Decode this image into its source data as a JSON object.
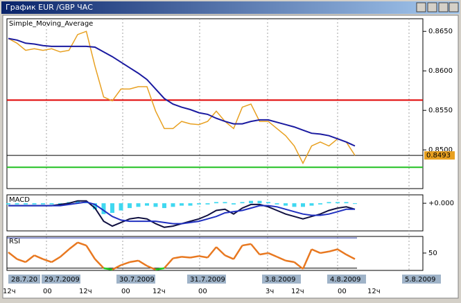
{
  "window": {
    "title": "График EUR /GBP  ЧАС"
  },
  "chart_data": [
    {
      "type": "line",
      "title": "Simple_Moving_Average",
      "x": [
        0,
        1,
        2,
        3,
        4,
        5,
        6,
        7,
        8,
        9,
        10,
        11,
        12,
        13,
        14,
        15,
        16,
        17,
        18,
        19,
        20,
        21,
        22,
        23,
        24,
        25,
        26,
        27,
        28,
        29,
        30,
        31,
        32,
        33,
        34,
        35,
        36,
        37,
        38,
        39,
        40
      ],
      "xlim": [
        0,
        48
      ],
      "series": [
        {
          "color": "#e8a020",
          "values": [
            0.8641,
            0.8635,
            0.8626,
            0.8628,
            0.8626,
            0.8628,
            0.8624,
            0.8626,
            0.8646,
            0.865,
            0.8606,
            0.8567,
            0.8562,
            0.8577,
            0.8577,
            0.858,
            0.858,
            0.8549,
            0.8527,
            0.8527,
            0.8536,
            0.8533,
            0.8532,
            0.8536,
            0.8549,
            0.8536,
            0.8527,
            0.8554,
            0.8558,
            0.8536,
            0.8536,
            0.8527,
            0.8518,
            0.8505,
            0.8483,
            0.8505,
            0.851,
            0.8505,
            0.8514,
            0.851,
            0.8493
          ]
        },
        {
          "color": "#1a1aa0",
          "values": [
            0.8641,
            0.8639,
            0.8635,
            0.8634,
            0.8632,
            0.8631,
            0.8631,
            0.8631,
            0.8631,
            0.8631,
            0.863,
            0.8624,
            0.8618,
            0.8611,
            0.8604,
            0.8597,
            0.8589,
            0.8577,
            0.8565,
            0.8558,
            0.8554,
            0.8551,
            0.8547,
            0.8545,
            0.854,
            0.8536,
            0.8533,
            0.8533,
            0.8536,
            0.8538,
            0.8538,
            0.8535,
            0.8532,
            0.8529,
            0.8525,
            0.8521,
            0.852,
            0.8518,
            0.8514,
            0.851,
            0.8505
          ]
        }
      ],
      "ylim": [
        0.8451,
        0.8666
      ],
      "yticks": [
        {
          "value": 0.85,
          "label": "0.8500"
        },
        {
          "value": 0.855,
          "label": "0.8550"
        },
        {
          "value": 0.86,
          "label": "0.8600"
        },
        {
          "value": 0.865,
          "label": "0.8650"
        }
      ],
      "hlines": [
        {
          "value": 0.8563,
          "color": "#e00000"
        },
        {
          "value": 0.8478,
          "color": "#20c020"
        },
        {
          "value": 0.8493,
          "color": "#000000",
          "label": "0.8493"
        }
      ]
    },
    {
      "type": "line",
      "title": "MACD",
      "x": [
        0,
        1,
        2,
        3,
        4,
        5,
        6,
        7,
        8,
        9,
        10,
        11,
        12,
        13,
        14,
        15,
        16,
        17,
        18,
        19,
        20,
        21,
        22,
        23,
        24,
        25,
        26,
        27,
        28,
        29,
        30,
        31,
        32,
        33,
        34,
        35,
        36,
        37,
        38,
        39,
        40
      ],
      "xlim": [
        0,
        48
      ],
      "histogram": {
        "color": "#40d8f0",
        "values": [
          -0.0001,
          -0.0001,
          -0.0001,
          -0.0001,
          -0.0001,
          -0.0001,
          -0.0001,
          0.0001,
          0.0002,
          0.0001,
          -0.0005,
          -0.0009,
          -0.0008,
          -0.0006,
          -0.0004,
          -0.0003,
          -0.0002,
          -0.0003,
          -0.0004,
          -0.0003,
          -0.0002,
          -0.0002,
          -0.0001,
          -0.0001,
          0.0001,
          0.0001,
          -0.0001,
          0.0001,
          0.0002,
          0.0002,
          0.0001,
          -0.0001,
          -0.0002,
          -0.0003,
          -0.0003,
          -0.0002,
          -0.0001,
          0.0001,
          0.0001,
          0.0001,
          0
        ]
      },
      "series": [
        {
          "color": "#101040",
          "values": [
            -0.0002,
            -0.0002,
            -0.0002,
            -0.0002,
            -0.0002,
            -0.0002,
            -0.0001,
            0,
            0.0002,
            0.0002,
            -0.0004,
            -0.0015,
            -0.0019,
            -0.0016,
            -0.0013,
            -0.0012,
            -0.0013,
            -0.0017,
            -0.002,
            -0.0019,
            -0.0017,
            -0.0015,
            -0.0013,
            -0.001,
            -0.0006,
            -0.0005,
            -0.0009,
            -0.0004,
            -0.0001,
            -0.0001,
            -0.0003,
            -0.0006,
            -0.0009,
            -0.0011,
            -0.0013,
            -0.0011,
            -0.0009,
            -0.0006,
            -0.0004,
            -0.0003,
            -0.0005
          ]
        },
        {
          "color": "#2030c0",
          "values": [
            -0.0002,
            -0.0002,
            -0.0002,
            -0.0002,
            -0.0002,
            -0.0002,
            -0.0002,
            -0.0001,
            0,
            0.0001,
            -0.0001,
            -0.0006,
            -0.0011,
            -0.0014,
            -0.0015,
            -0.0015,
            -0.0015,
            -0.0015,
            -0.0016,
            -0.0017,
            -0.0017,
            -0.0016,
            -0.0015,
            -0.0013,
            -0.0011,
            -0.0008,
            -0.0007,
            -0.0006,
            -0.0004,
            -0.0002,
            -0.0002,
            -0.0003,
            -0.0005,
            -0.0007,
            -0.0009,
            -0.001,
            -0.001,
            -0.0009,
            -0.0007,
            -0.0005,
            -0.0005
          ]
        }
      ],
      "ylim": [
        -0.0023,
        0.0007
      ],
      "yticks": [
        {
          "value": 0,
          "label": "+0.000"
        }
      ]
    },
    {
      "type": "line",
      "title": "RSI",
      "x": [
        0,
        1,
        2,
        3,
        4,
        5,
        6,
        7,
        8,
        9,
        10,
        11,
        12,
        13,
        14,
        15,
        16,
        17,
        18,
        19,
        20,
        21,
        22,
        23,
        24,
        25,
        26,
        27,
        28,
        29,
        30,
        31,
        32,
        33,
        34,
        35,
        36,
        37,
        38,
        39,
        40
      ],
      "xlim": [
        0,
        48
      ],
      "series": [
        {
          "color": "#e87820",
          "low_color": "#20d020",
          "values": [
            51,
            42,
            38,
            47,
            42,
            38,
            45,
            55,
            64,
            60,
            42,
            30,
            28,
            34,
            38,
            40,
            33,
            28,
            30,
            43,
            45,
            44,
            46,
            44,
            58,
            47,
            42,
            60,
            62,
            48,
            50,
            45,
            40,
            38,
            29,
            55,
            50,
            52,
            55,
            48,
            42
          ]
        }
      ],
      "ylim": [
        27,
        72
      ],
      "yticks": [
        50
      ],
      "levels": [
        {
          "value": 70,
          "color": "#2030a0"
        },
        {
          "value": 30,
          "color": "#000000"
        }
      ]
    }
  ],
  "time_axis": {
    "dates": [
      "28.7.20",
      "29.7.2009",
      "30.7.2009",
      "31.7.2009",
      "3.8.2009",
      "4.8.2009",
      "5.8.2009"
    ],
    "hours": [
      "12ч",
      "00",
      "12ч",
      "00",
      "12ч",
      "00",
      "3ч",
      "12ч",
      "00",
      "12ч"
    ]
  }
}
